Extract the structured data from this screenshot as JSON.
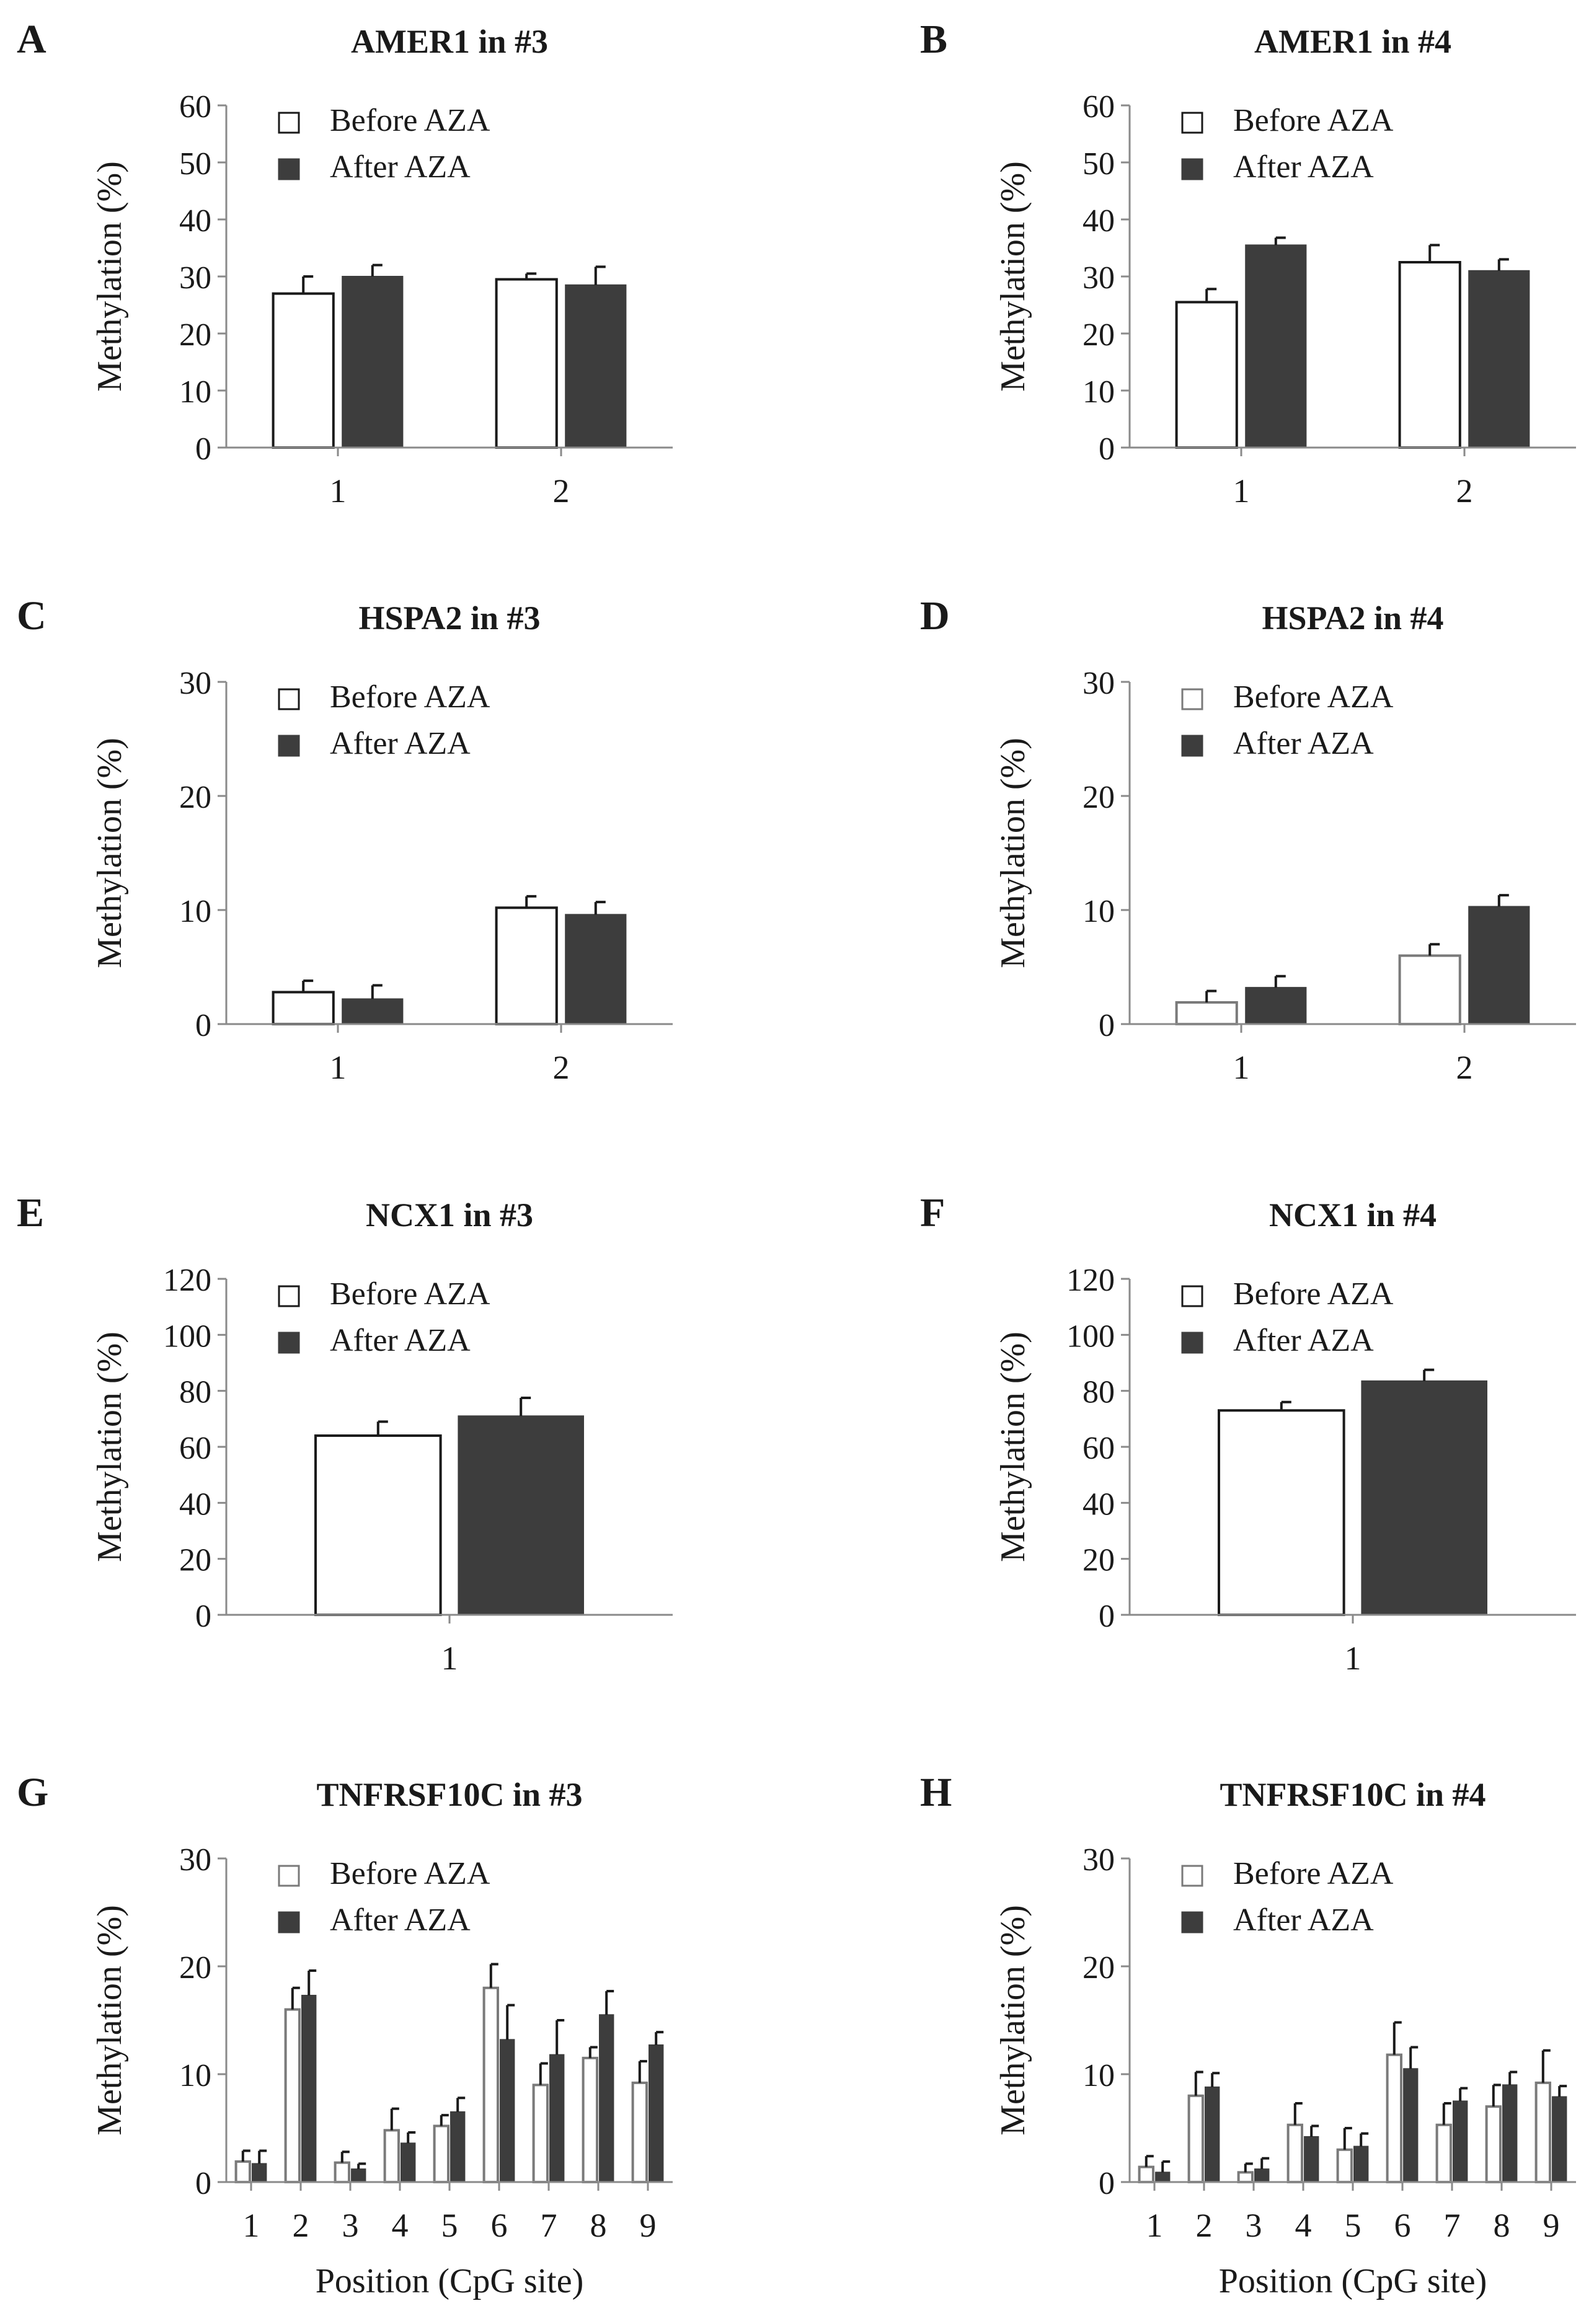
{
  "figure": {
    "colors": {
      "before": "#ffffff",
      "after": "#3d3d3d",
      "axis": "#8a8a8a",
      "ink": "#1a1a1a"
    }
  },
  "chart_data": [
    {
      "panel": "A",
      "type": "bar",
      "title": "AMER1 in #3",
      "ylabel": "Methylation (%)",
      "xlabel": "",
      "ylim": [
        0,
        60
      ],
      "yticks": [
        0,
        10,
        20,
        30,
        40,
        50,
        60
      ],
      "categories": [
        "1",
        "2"
      ],
      "legend": "top-left",
      "series": [
        {
          "name": "Before AZA",
          "values": [
            27,
            29.5
          ],
          "errors": [
            3,
            1
          ]
        },
        {
          "name": "After AZA",
          "values": [
            30,
            28.5
          ],
          "errors": [
            2,
            3.2
          ]
        }
      ]
    },
    {
      "panel": "B",
      "type": "bar",
      "title": "AMER1 in #4",
      "ylabel": "Methylation (%)",
      "xlabel": "",
      "ylim": [
        0,
        60
      ],
      "yticks": [
        0,
        10,
        20,
        30,
        40,
        50,
        60
      ],
      "categories": [
        "1",
        "2"
      ],
      "legend": "top-left",
      "series": [
        {
          "name": "Before AZA",
          "values": [
            25.5,
            32.5
          ],
          "errors": [
            2.3,
            3
          ]
        },
        {
          "name": "After AZA",
          "values": [
            35.5,
            31
          ],
          "errors": [
            1.3,
            2
          ]
        }
      ]
    },
    {
      "panel": "C",
      "type": "bar",
      "title": "HSPA2 in #3",
      "ylabel": "Methylation (%)",
      "xlabel": "",
      "ylim": [
        0,
        30
      ],
      "yticks": [
        0,
        10,
        20,
        30
      ],
      "categories": [
        "1",
        "2"
      ],
      "legend": "top-left",
      "series": [
        {
          "name": "Before AZA",
          "values": [
            2.8,
            10.2
          ],
          "errors": [
            1,
            1
          ]
        },
        {
          "name": "After AZA",
          "values": [
            2.2,
            9.6
          ],
          "errors": [
            1.2,
            1.1
          ]
        }
      ]
    },
    {
      "panel": "D",
      "type": "bar",
      "title": "HSPA2 in #4",
      "ylabel": "Methylation (%)",
      "xlabel": "",
      "ylim": [
        0,
        30
      ],
      "yticks": [
        0,
        10,
        20,
        30
      ],
      "categories": [
        "1",
        "2"
      ],
      "legend": "top-left",
      "series": [
        {
          "name": "Before AZA",
          "values": [
            1.9,
            6
          ],
          "errors": [
            1,
            1
          ]
        },
        {
          "name": "After AZA",
          "values": [
            3.2,
            10.3
          ],
          "errors": [
            1,
            1
          ]
        }
      ]
    },
    {
      "panel": "E",
      "type": "bar",
      "title": "NCX1 in #3",
      "ylabel": "Methylation (%)",
      "xlabel": "",
      "ylim": [
        0,
        120
      ],
      "yticks": [
        0,
        20,
        40,
        60,
        80,
        100,
        120
      ],
      "categories": [
        "1"
      ],
      "legend": "top-left",
      "series": [
        {
          "name": "Before AZA",
          "values": [
            64
          ],
          "errors": [
            5
          ]
        },
        {
          "name": "After AZA",
          "values": [
            71
          ],
          "errors": [
            6.5
          ]
        }
      ]
    },
    {
      "panel": "F",
      "type": "bar",
      "title": "NCX1 in #4",
      "ylabel": "Methylation (%)",
      "xlabel": "",
      "ylim": [
        0,
        120
      ],
      "yticks": [
        0,
        20,
        40,
        60,
        80,
        100,
        120
      ],
      "categories": [
        "1"
      ],
      "legend": "top-left",
      "series": [
        {
          "name": "Before AZA",
          "values": [
            73
          ],
          "errors": [
            3
          ]
        },
        {
          "name": "After AZA",
          "values": [
            83.5
          ],
          "errors": [
            4
          ]
        }
      ]
    },
    {
      "panel": "G",
      "type": "bar",
      "title": "TNFRSF10C in #3",
      "ylabel": "Methylation (%)",
      "xlabel": "Position (CpG site)",
      "ylim": [
        0,
        30
      ],
      "yticks": [
        0,
        10,
        20,
        30
      ],
      "categories": [
        "1",
        "2",
        "3",
        "4",
        "5",
        "6",
        "7",
        "8",
        "9"
      ],
      "legend": "top-left",
      "series": [
        {
          "name": "Before AZA",
          "values": [
            1.9,
            16,
            1.8,
            4.8,
            5.2,
            18,
            9,
            11.5,
            9.2
          ],
          "errors": [
            1,
            2,
            1,
            2,
            1,
            2.2,
            2,
            1,
            2
          ]
        },
        {
          "name": "After AZA",
          "values": [
            1.7,
            17.3,
            1.2,
            3.6,
            6.5,
            13.2,
            11.8,
            15.5,
            12.7
          ],
          "errors": [
            1.2,
            2.3,
            0.5,
            1,
            1.3,
            3.2,
            3.2,
            2.2,
            1.2
          ]
        }
      ]
    },
    {
      "panel": "H",
      "type": "bar",
      "title": "TNFRSF10C in #4",
      "ylabel": "Methylation (%)",
      "xlabel": "Position (CpG site)",
      "ylim": [
        0,
        30
      ],
      "yticks": [
        0,
        10,
        20,
        30
      ],
      "categories": [
        "1",
        "2",
        "3",
        "4",
        "5",
        "6",
        "7",
        "8",
        "9"
      ],
      "legend": "top-left",
      "series": [
        {
          "name": "Before AZA",
          "values": [
            1.4,
            8,
            0.9,
            5.3,
            3,
            11.8,
            5.3,
            7,
            9.2
          ],
          "errors": [
            1,
            2.2,
            0.8,
            2,
            2,
            3,
            2,
            2,
            3
          ]
        },
        {
          "name": "After AZA",
          "values": [
            0.9,
            8.8,
            1.2,
            4.2,
            3.3,
            10.5,
            7.5,
            9,
            7.9
          ],
          "errors": [
            1,
            1.3,
            1,
            1,
            1.2,
            2,
            1.2,
            1.2,
            1
          ]
        }
      ]
    }
  ]
}
